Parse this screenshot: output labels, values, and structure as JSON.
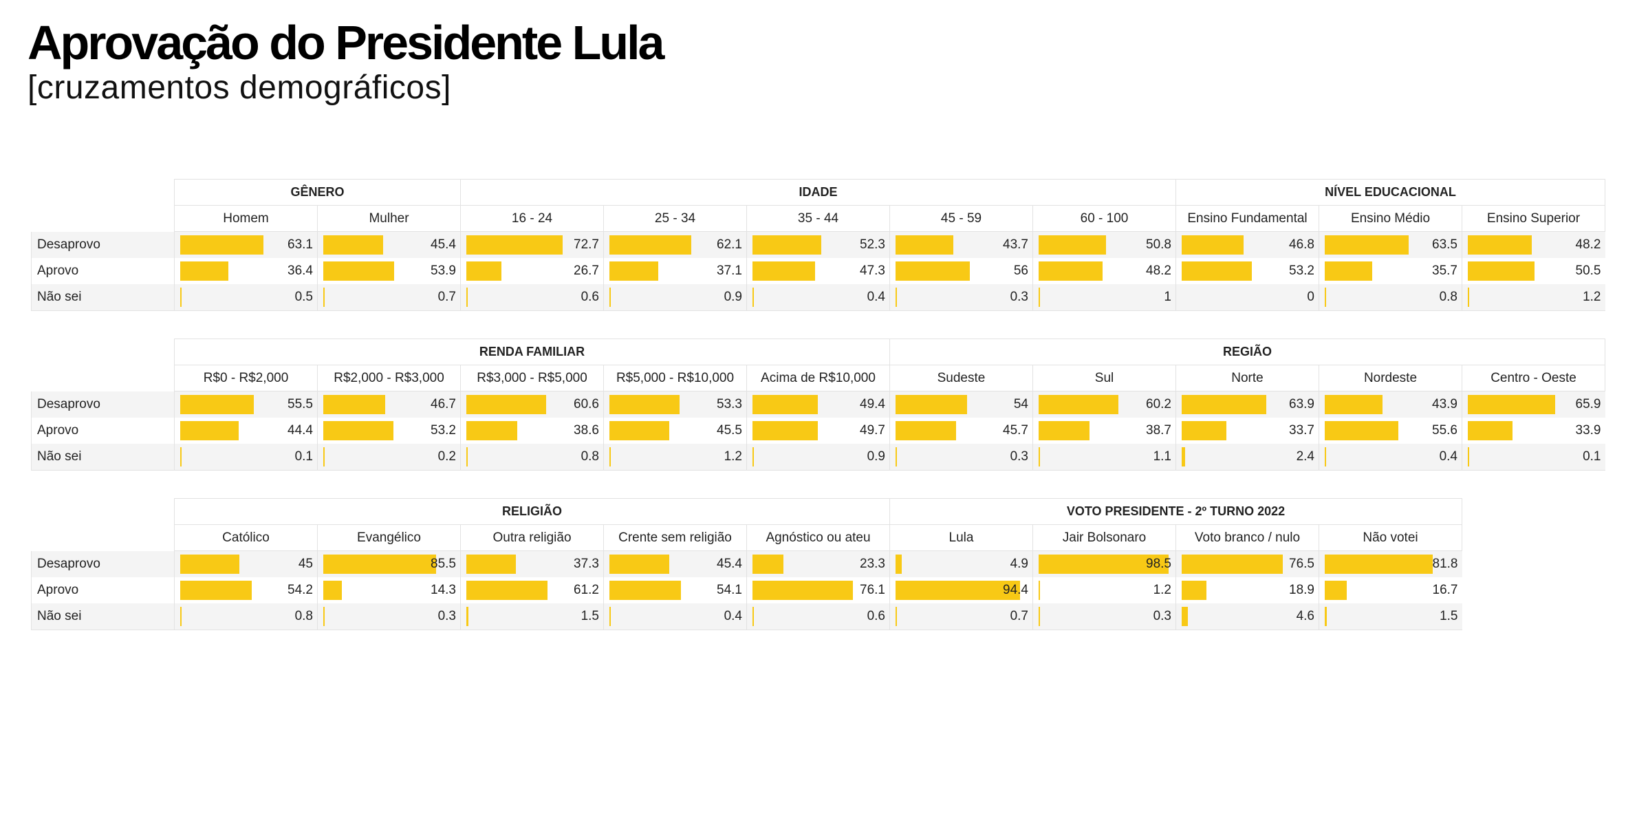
{
  "title": "Aprovação do Presidente Lula",
  "subtitle": "[cruzamentos demográficos]",
  "bar_color": "#f8c915",
  "chart_data": {
    "type": "table",
    "row_labels": [
      "Desaprovo",
      "Aprovo",
      "Não sei"
    ],
    "tables": [
      {
        "groups": [
          {
            "name": "GÊNERO",
            "columns": [
              "Homem",
              "Mulher"
            ],
            "values": [
              [
                63.1,
                45.4
              ],
              [
                36.4,
                53.9
              ],
              [
                0.5,
                0.7
              ]
            ]
          },
          {
            "name": "IDADE",
            "columns": [
              "16 - 24",
              "25 - 34",
              "35 - 44",
              "45 - 59",
              "60 - 100"
            ],
            "values": [
              [
                72.7,
                62.1,
                52.3,
                43.7,
                50.8
              ],
              [
                26.7,
                37.1,
                47.3,
                56,
                48.2
              ],
              [
                0.6,
                0.9,
                0.4,
                0.3,
                1
              ]
            ]
          },
          {
            "name": "NÍVEL EDUCACIONAL",
            "columns": [
              "Ensino Fundamental",
              "Ensino Médio",
              "Ensino Superior"
            ],
            "values": [
              [
                46.8,
                63.5,
                48.2
              ],
              [
                53.2,
                35.7,
                50.5
              ],
              [
                0,
                0.8,
                1.2
              ]
            ]
          }
        ]
      },
      {
        "groups": [
          {
            "name": "RENDA FAMILIAR",
            "columns": [
              "R$0 - R$2,000",
              "R$2,000 - R$3,000",
              "R$3,000 - R$5,000",
              "R$5,000 - R$10,000",
              "Acima de R$10,000"
            ],
            "values": [
              [
                55.5,
                46.7,
                60.6,
                53.3,
                49.4
              ],
              [
                44.4,
                53.2,
                38.6,
                45.5,
                49.7
              ],
              [
                0.1,
                0.2,
                0.8,
                1.2,
                0.9
              ]
            ]
          },
          {
            "name": "REGIÃO",
            "columns": [
              "Sudeste",
              "Sul",
              "Norte",
              "Nordeste",
              "Centro - Oeste"
            ],
            "values": [
              [
                54,
                60.2,
                63.9,
                43.9,
                65.9
              ],
              [
                45.7,
                38.7,
                33.7,
                55.6,
                33.9
              ],
              [
                0.3,
                1.1,
                2.4,
                0.4,
                0.1
              ]
            ]
          }
        ]
      },
      {
        "groups": [
          {
            "name": "RELIGIÃO",
            "columns": [
              "Católico",
              "Evangélico",
              "Outra religião",
              "Crente sem religião",
              "Agnóstico ou ateu"
            ],
            "values": [
              [
                45,
                85.5,
                37.3,
                45.4,
                23.3
              ],
              [
                54.2,
                14.3,
                61.2,
                54.1,
                76.1
              ],
              [
                0.8,
                0.3,
                1.5,
                0.4,
                0.6
              ]
            ]
          },
          {
            "name": "VOTO PRESIDENTE - 2º TURNO 2022",
            "columns": [
              "Lula",
              "Jair Bolsonaro",
              "Voto branco / nulo",
              "Não votei"
            ],
            "values": [
              [
                4.9,
                98.5,
                76.5,
                81.8
              ],
              [
                94.4,
                1.2,
                18.9,
                16.7
              ],
              [
                0.7,
                0.3,
                4.6,
                1.5
              ]
            ]
          }
        ]
      }
    ]
  }
}
